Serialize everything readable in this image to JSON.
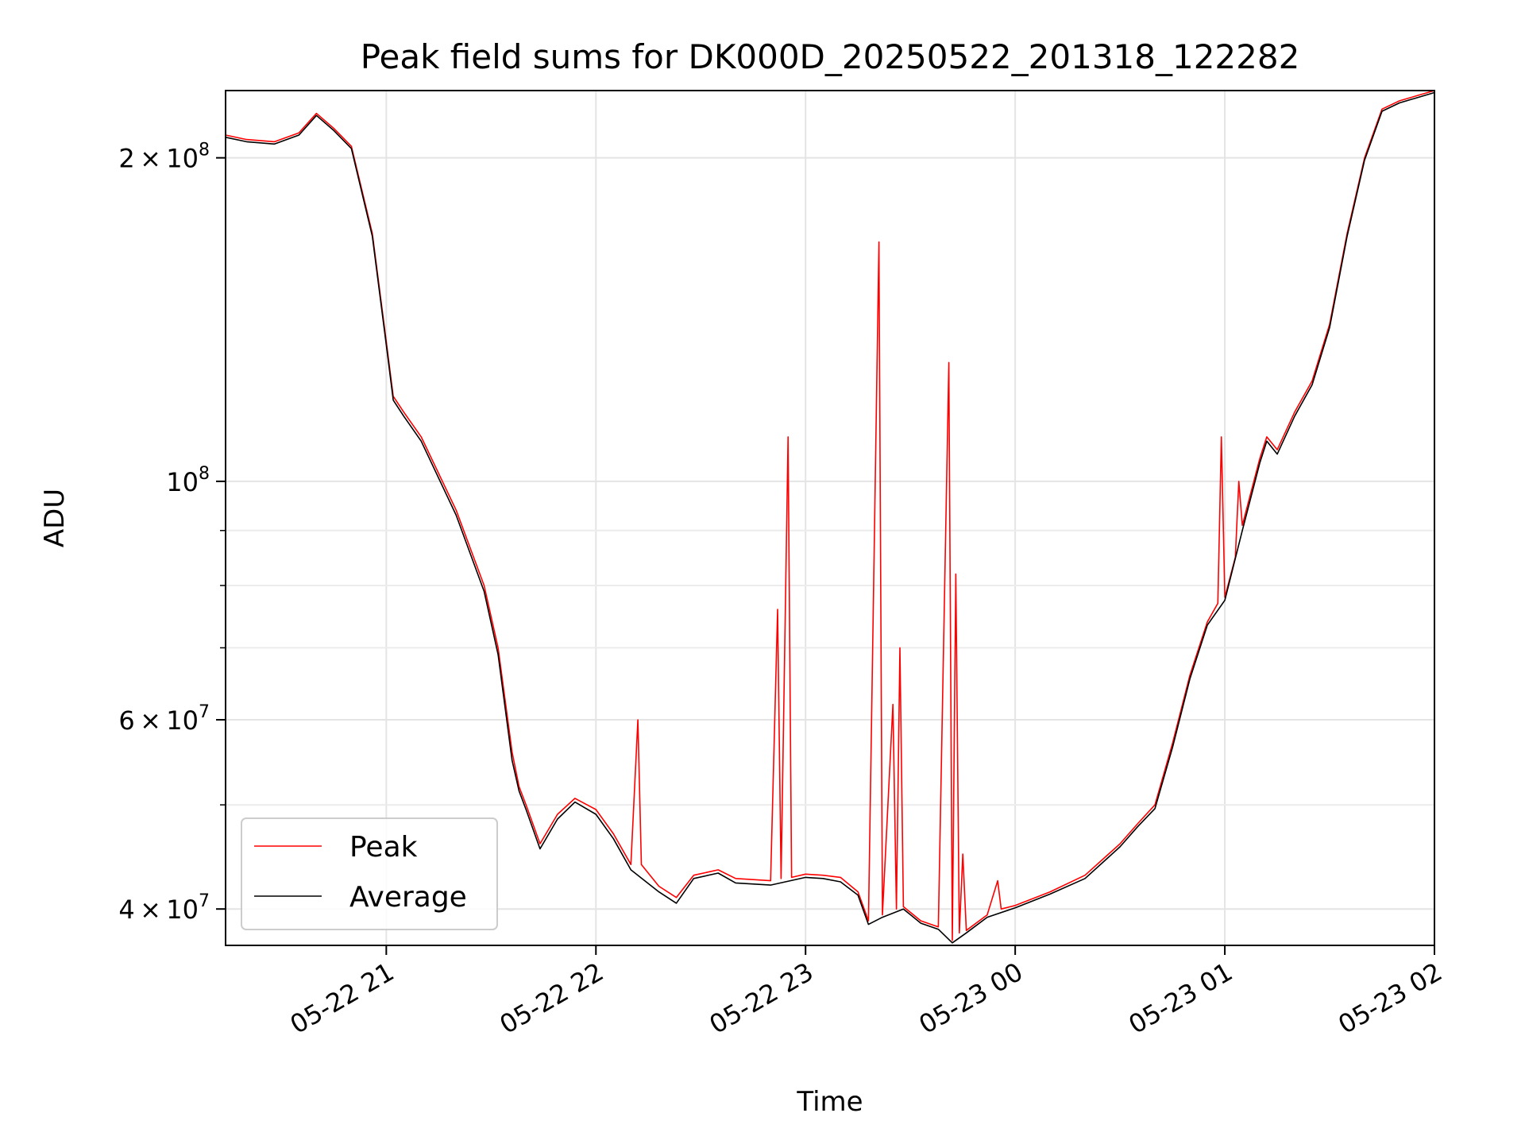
{
  "chart_data": {
    "type": "line",
    "title": "Peak field sums for DK000D_20250522_201318_122282",
    "xlabel": "Time",
    "ylabel": "ADU",
    "x_axis": {
      "type": "time",
      "range": [
        "2025-05-22 20:14",
        "2025-05-23 02:00"
      ],
      "ticks": [
        {
          "t": "2025-05-22 21:00",
          "label": "05-22 21"
        },
        {
          "t": "2025-05-22 22:00",
          "label": "05-22 22"
        },
        {
          "t": "2025-05-22 23:00",
          "label": "05-22 23"
        },
        {
          "t": "2025-05-23 00:00",
          "label": "05-23 00"
        },
        {
          "t": "2025-05-23 01:00",
          "label": "05-23 01"
        },
        {
          "t": "2025-05-23 02:00",
          "label": "05-23 02"
        }
      ]
    },
    "y_axis": {
      "scale": "log",
      "range": [
        37000000,
        231000000
      ],
      "major_ticks": [
        {
          "value": 40000000,
          "mant": "4",
          "exp": "7"
        },
        {
          "value": 60000000,
          "mant": "6",
          "exp": "7"
        },
        {
          "value": 100000000,
          "mant": "",
          "exp": "8"
        },
        {
          "value": 200000000,
          "mant": "2",
          "exp": "8"
        }
      ],
      "minor_ticks": [
        50000000,
        70000000,
        80000000,
        90000000
      ]
    },
    "grid": true,
    "legend": {
      "position": "lower-left"
    },
    "series": [
      {
        "name": "Peak",
        "color": "#ff0000",
        "points": [
          [
            "2025-05-22 20:14",
            210000000
          ],
          [
            "2025-05-22 20:20",
            208000000
          ],
          [
            "2025-05-22 20:28",
            207000000
          ],
          [
            "2025-05-22 20:35",
            211000000
          ],
          [
            "2025-05-22 20:40",
            220000000
          ],
          [
            "2025-05-22 20:45",
            213000000
          ],
          [
            "2025-05-22 20:50",
            205000000
          ],
          [
            "2025-05-22 20:56",
            170000000
          ],
          [
            "2025-05-22 21:00",
            135000000
          ],
          [
            "2025-05-22 21:02",
            120000000
          ],
          [
            "2025-05-22 21:05",
            116000000
          ],
          [
            "2025-05-22 21:10",
            110000000
          ],
          [
            "2025-05-22 21:20",
            94000000
          ],
          [
            "2025-05-22 21:28",
            80000000
          ],
          [
            "2025-05-22 21:32",
            70000000
          ],
          [
            "2025-05-22 21:36",
            56000000
          ],
          [
            "2025-05-22 21:38",
            52000000
          ],
          [
            "2025-05-22 21:40",
            50000000
          ],
          [
            "2025-05-22 21:44",
            46000000
          ],
          [
            "2025-05-22 21:49",
            49000000
          ],
          [
            "2025-05-22 21:54",
            50700000
          ],
          [
            "2025-05-22 22:00",
            49500000
          ],
          [
            "2025-05-22 22:05",
            47000000
          ],
          [
            "2025-05-22 22:10",
            44000000
          ],
          [
            "2025-05-22 22:12",
            60000000
          ],
          [
            "2025-05-22 22:13",
            44000000
          ],
          [
            "2025-05-22 22:18",
            42000000
          ],
          [
            "2025-05-22 22:23",
            41000000
          ],
          [
            "2025-05-22 22:28",
            43000000
          ],
          [
            "2025-05-22 22:35",
            43500000
          ],
          [
            "2025-05-22 22:40",
            42700000
          ],
          [
            "2025-05-22 22:50",
            42500000
          ],
          [
            "2025-05-22 22:52",
            76000000
          ],
          [
            "2025-05-22 22:53",
            42700000
          ],
          [
            "2025-05-22 22:55",
            110000000
          ],
          [
            "2025-05-22 22:56",
            42800000
          ],
          [
            "2025-05-22 23:00",
            43100000
          ],
          [
            "2025-05-22 23:05",
            43000000
          ],
          [
            "2025-05-22 23:10",
            42800000
          ],
          [
            "2025-05-22 23:15",
            41500000
          ],
          [
            "2025-05-22 23:18",
            39000000
          ],
          [
            "2025-05-22 23:21",
            167000000
          ],
          [
            "2025-05-22 23:22",
            39500000
          ],
          [
            "2025-05-22 23:25",
            62000000
          ],
          [
            "2025-05-22 23:26",
            40000000
          ],
          [
            "2025-05-22 23:27",
            70000000
          ],
          [
            "2025-05-22 23:28",
            40200000
          ],
          [
            "2025-05-22 23:33",
            39000000
          ],
          [
            "2025-05-22 23:38",
            38500000
          ],
          [
            "2025-05-22 23:41",
            129000000
          ],
          [
            "2025-05-22 23:42",
            37400000
          ],
          [
            "2025-05-22 23:43",
            82000000
          ],
          [
            "2025-05-22 23:44",
            38000000
          ],
          [
            "2025-05-22 23:45",
            45000000
          ],
          [
            "2025-05-22 23:46",
            38200000
          ],
          [
            "2025-05-22 23:52",
            39500000
          ],
          [
            "2025-05-22 23:55",
            42500000
          ],
          [
            "2025-05-22 23:56",
            40000000
          ],
          [
            "2025-05-23 00:00",
            40300000
          ],
          [
            "2025-05-23 00:10",
            41500000
          ],
          [
            "2025-05-23 00:20",
            43000000
          ],
          [
            "2025-05-23 00:30",
            46000000
          ],
          [
            "2025-05-23 00:35",
            48000000
          ],
          [
            "2025-05-23 00:40",
            50000000
          ],
          [
            "2025-05-23 00:45",
            57000000
          ],
          [
            "2025-05-23 00:50",
            66000000
          ],
          [
            "2025-05-23 00:55",
            74000000
          ],
          [
            "2025-05-23 00:58",
            77000000
          ],
          [
            "2025-05-23 00:59",
            110000000
          ],
          [
            "2025-05-23 01:00",
            78000000
          ],
          [
            "2025-05-23 01:03",
            85000000
          ],
          [
            "2025-05-23 01:04",
            100000000
          ],
          [
            "2025-05-23 01:05",
            91000000
          ],
          [
            "2025-05-23 01:10",
            105000000
          ],
          [
            "2025-05-23 01:12",
            110000000
          ],
          [
            "2025-05-23 01:15",
            107000000
          ],
          [
            "2025-05-23 01:20",
            116000000
          ],
          [
            "2025-05-23 01:25",
            124000000
          ],
          [
            "2025-05-23 01:30",
            140000000
          ],
          [
            "2025-05-23 01:35",
            170000000
          ],
          [
            "2025-05-23 01:40",
            200000000
          ],
          [
            "2025-05-23 01:45",
            222000000
          ],
          [
            "2025-05-23 01:50",
            226000000
          ],
          [
            "2025-05-23 02:00",
            231000000
          ]
        ]
      },
      {
        "name": "Average",
        "color": "#000000",
        "points": [
          [
            "2025-05-22 20:14",
            209000000
          ],
          [
            "2025-05-22 20:20",
            207000000
          ],
          [
            "2025-05-22 20:28",
            206000000
          ],
          [
            "2025-05-22 20:35",
            210000000
          ],
          [
            "2025-05-22 20:40",
            219000000
          ],
          [
            "2025-05-22 20:45",
            212000000
          ],
          [
            "2025-05-22 20:50",
            204000000
          ],
          [
            "2025-05-22 20:56",
            169000000
          ],
          [
            "2025-05-22 21:00",
            134000000
          ],
          [
            "2025-05-22 21:02",
            119000000
          ],
          [
            "2025-05-22 21:05",
            115000000
          ],
          [
            "2025-05-22 21:10",
            109000000
          ],
          [
            "2025-05-22 21:20",
            93000000
          ],
          [
            "2025-05-22 21:28",
            79000000
          ],
          [
            "2025-05-22 21:32",
            69000000
          ],
          [
            "2025-05-22 21:36",
            55000000
          ],
          [
            "2025-05-22 21:38",
            51500000
          ],
          [
            "2025-05-22 21:40",
            49500000
          ],
          [
            "2025-05-22 21:44",
            45500000
          ],
          [
            "2025-05-22 21:49",
            48500000
          ],
          [
            "2025-05-22 21:54",
            50300000
          ],
          [
            "2025-05-22 22:00",
            49000000
          ],
          [
            "2025-05-22 22:05",
            46500000
          ],
          [
            "2025-05-22 22:10",
            43500000
          ],
          [
            "2025-05-22 22:18",
            41500000
          ],
          [
            "2025-05-22 22:23",
            40500000
          ],
          [
            "2025-05-22 22:28",
            42700000
          ],
          [
            "2025-05-22 22:35",
            43200000
          ],
          [
            "2025-05-22 22:40",
            42300000
          ],
          [
            "2025-05-22 22:50",
            42100000
          ],
          [
            "2025-05-22 23:00",
            42800000
          ],
          [
            "2025-05-22 23:05",
            42700000
          ],
          [
            "2025-05-22 23:10",
            42400000
          ],
          [
            "2025-05-22 23:15",
            41200000
          ],
          [
            "2025-05-22 23:18",
            38700000
          ],
          [
            "2025-05-22 23:22",
            39300000
          ],
          [
            "2025-05-22 23:28",
            40000000
          ],
          [
            "2025-05-22 23:33",
            38800000
          ],
          [
            "2025-05-22 23:38",
            38300000
          ],
          [
            "2025-05-22 23:42",
            37200000
          ],
          [
            "2025-05-22 23:46",
            38000000
          ],
          [
            "2025-05-22 23:52",
            39300000
          ],
          [
            "2025-05-23 00:00",
            40100000
          ],
          [
            "2025-05-23 00:10",
            41300000
          ],
          [
            "2025-05-23 00:20",
            42700000
          ],
          [
            "2025-05-23 00:30",
            45700000
          ],
          [
            "2025-05-23 00:35",
            47700000
          ],
          [
            "2025-05-23 00:40",
            49600000
          ],
          [
            "2025-05-23 00:45",
            56500000
          ],
          [
            "2025-05-23 00:50",
            65500000
          ],
          [
            "2025-05-23 00:55",
            73500000
          ],
          [
            "2025-05-23 01:00",
            77500000
          ],
          [
            "2025-05-23 01:05",
            90000000
          ],
          [
            "2025-05-23 01:10",
            104000000
          ],
          [
            "2025-05-23 01:12",
            109000000
          ],
          [
            "2025-05-23 01:15",
            106000000
          ],
          [
            "2025-05-23 01:20",
            115000000
          ],
          [
            "2025-05-23 01:25",
            123000000
          ],
          [
            "2025-05-23 01:30",
            139000000
          ],
          [
            "2025-05-23 01:35",
            169000000
          ],
          [
            "2025-05-23 01:40",
            199000000
          ],
          [
            "2025-05-23 01:45",
            221000000
          ],
          [
            "2025-05-23 01:50",
            225000000
          ],
          [
            "2025-05-23 02:00",
            230000000
          ]
        ]
      }
    ]
  }
}
